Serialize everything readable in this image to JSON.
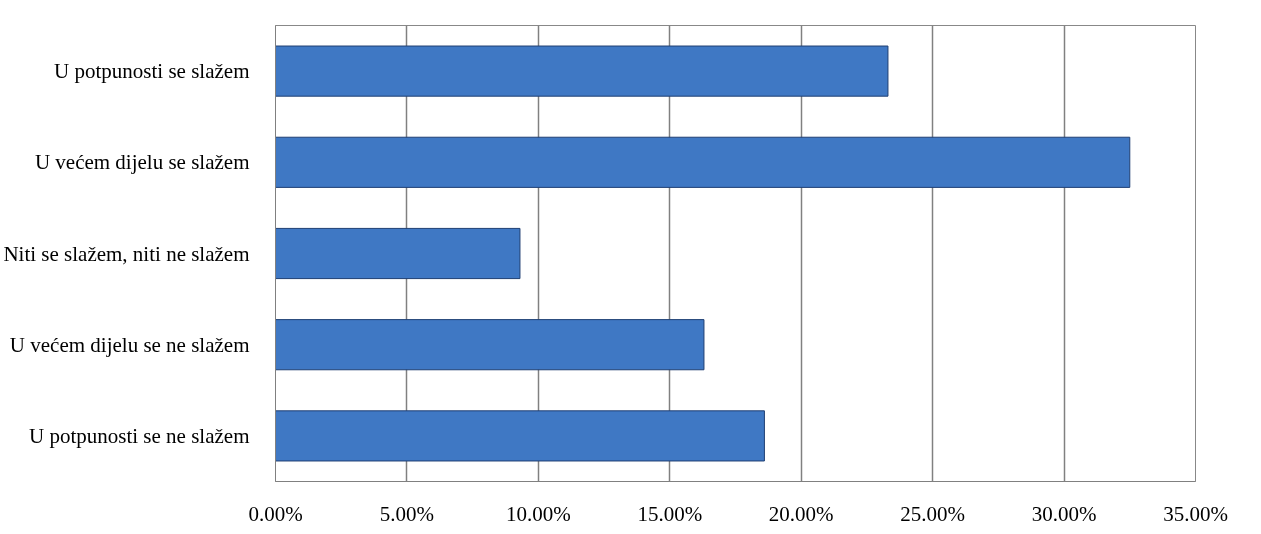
{
  "chart_data": {
    "type": "bar",
    "orientation": "horizontal",
    "categories": [
      "U potpunosti se slažem",
      "U većem dijelu se slažem",
      "Niti se slažem, niti ne slažem",
      "U većem dijelu se ne slažem",
      "U potpunosti se ne slažem"
    ],
    "values": [
      23.3,
      32.5,
      9.3,
      16.3,
      18.6
    ],
    "color": "#3f78c4",
    "xlim": [
      0,
      35
    ],
    "xticks": [
      {
        "value": 0,
        "label": "0.00%"
      },
      {
        "value": 5,
        "label": "5.00%"
      },
      {
        "value": 10,
        "label": "10.00%"
      },
      {
        "value": 15,
        "label": "15.00%"
      },
      {
        "value": 20,
        "label": "20.00%"
      },
      {
        "value": 25,
        "label": "25.00%"
      },
      {
        "value": 30,
        "label": "30.00%"
      },
      {
        "value": 35,
        "label": "35.00%"
      }
    ],
    "grid": "x"
  }
}
